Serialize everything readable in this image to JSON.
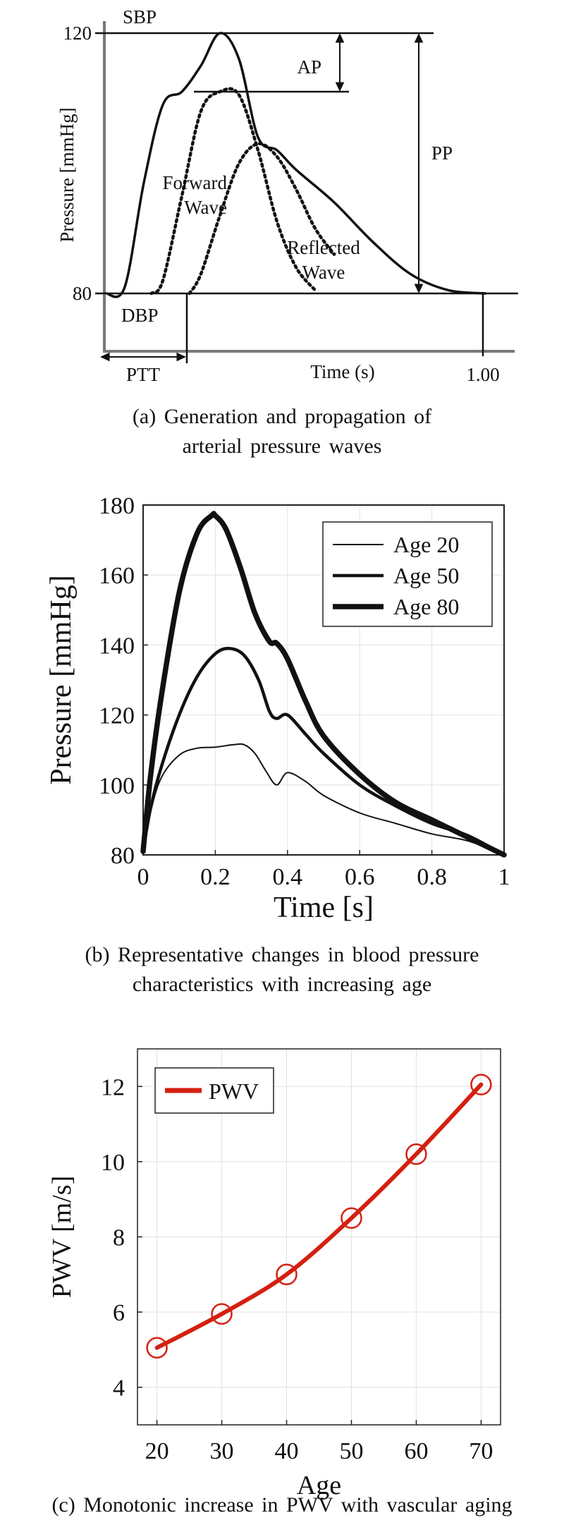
{
  "chart_data": [
    {
      "type": "line",
      "title": "",
      "xlabel": "Time (s)",
      "ylabel": "Pressure [mmHg]",
      "caption": [
        "(a)  Generation and propagation of",
        "arterial pressure waves"
      ],
      "y_ticks": [
        "120",
        "80"
      ],
      "x_ticks": [
        "1.00"
      ],
      "annotations": [
        "SBP",
        "DBP",
        "AP",
        "PP",
        "PTT",
        "Forward Wave",
        "Reflected Wave"
      ],
      "forward_label": [
        "Forward",
        "Wave"
      ],
      "reflected_label": [
        "Reflected",
        "Wave"
      ],
      "series": [
        {
          "name": "Forward Wave",
          "style": "dotted",
          "x": [
            0.12,
            0.15,
            0.2,
            0.25,
            0.3,
            0.35,
            0.4,
            0.45,
            0.5,
            0.55
          ],
          "y": [
            80,
            82,
            95,
            108,
            111,
            110.5,
            102,
            91,
            84,
            80.5
          ]
        },
        {
          "name": "Reflected Wave",
          "style": "dotted",
          "x": [
            0.22,
            0.25,
            0.3,
            0.35,
            0.4,
            0.45,
            0.5,
            0.55,
            0.6
          ],
          "y": [
            80,
            83,
            92,
            100,
            103,
            101,
            96,
            90,
            86
          ]
        }
      ],
      "total_wave": {
        "x": [
          0.0,
          0.05,
          0.1,
          0.15,
          0.2,
          0.25,
          0.3,
          0.35,
          0.4,
          0.45,
          0.5,
          0.6,
          0.7,
          0.8,
          0.9,
          1.0
        ],
        "y": [
          80,
          81,
          97,
          109,
          111,
          115,
          120,
          116,
          104,
          102,
          99,
          94,
          88,
          83,
          80.5,
          80
        ]
      },
      "levels": {
        "SBP": 120,
        "DBP": 80,
        "AP_base": 111
      }
    },
    {
      "type": "line",
      "title": "",
      "xlabel": "Time [s]",
      "ylabel": "Pressure [mmHg]",
      "caption": [
        "(b)  Representative changes in blood pressure",
        "characteristics with increasing age"
      ],
      "xlim": [
        0,
        1
      ],
      "ylim": [
        80,
        180
      ],
      "x_ticks": [
        "0",
        "0.2",
        "0.4",
        "0.6",
        "0.8",
        "1"
      ],
      "y_ticks": [
        "80",
        "100",
        "120",
        "140",
        "160",
        "180"
      ],
      "legend_position": "top-right",
      "series": [
        {
          "name": "Age 20",
          "x": [
            0,
            0.02,
            0.05,
            0.1,
            0.15,
            0.2,
            0.25,
            0.28,
            0.31,
            0.34,
            0.37,
            0.4,
            0.45,
            0.5,
            0.6,
            0.7,
            0.8,
            0.9,
            1.0
          ],
          "y": [
            81,
            92,
            102,
            108.5,
            110.5,
            110.8,
            111.5,
            111.5,
            109,
            104,
            100,
            103.5,
            101,
            97,
            92,
            89,
            86,
            84,
            80
          ]
        },
        {
          "name": "Age 50",
          "x": [
            0,
            0.02,
            0.05,
            0.1,
            0.15,
            0.2,
            0.24,
            0.28,
            0.32,
            0.35,
            0.37,
            0.4,
            0.45,
            0.5,
            0.6,
            0.7,
            0.8,
            0.9,
            1.0
          ],
          "y": [
            81,
            93,
            105,
            120,
            131,
            137.5,
            139,
            137,
            130,
            121,
            119,
            120,
            114.5,
            109,
            100,
            94,
            89,
            85.5,
            80
          ]
        },
        {
          "name": "Age 80",
          "x": [
            0,
            0.02,
            0.05,
            0.1,
            0.15,
            0.19,
            0.2,
            0.23,
            0.27,
            0.31,
            0.35,
            0.37,
            0.4,
            0.45,
            0.5,
            0.6,
            0.7,
            0.8,
            0.9,
            1.0
          ],
          "y": [
            81,
            102,
            125,
            155,
            172,
            177,
            177,
            173,
            162,
            149,
            141,
            140.5,
            136,
            124,
            114,
            103,
            95,
            90,
            85,
            80
          ]
        }
      ]
    },
    {
      "type": "line",
      "title": "",
      "xlabel": "Age",
      "ylabel": "PWV [m/s]",
      "caption": [
        "(c)  Monotonic increase in PWV with vascular aging"
      ],
      "xlim": [
        17,
        73
      ],
      "ylim": [
        3,
        13
      ],
      "x_ticks": [
        "20",
        "30",
        "40",
        "50",
        "60",
        "70"
      ],
      "y_ticks": [
        "4",
        "6",
        "8",
        "10",
        "12"
      ],
      "legend_position": "top-left",
      "series": [
        {
          "name": "PWV",
          "color": "#d42011",
          "x": [
            20,
            30,
            40,
            50,
            60,
            70
          ],
          "y": [
            5.05,
            5.95,
            7.0,
            8.5,
            10.2,
            12.05
          ]
        }
      ]
    }
  ]
}
